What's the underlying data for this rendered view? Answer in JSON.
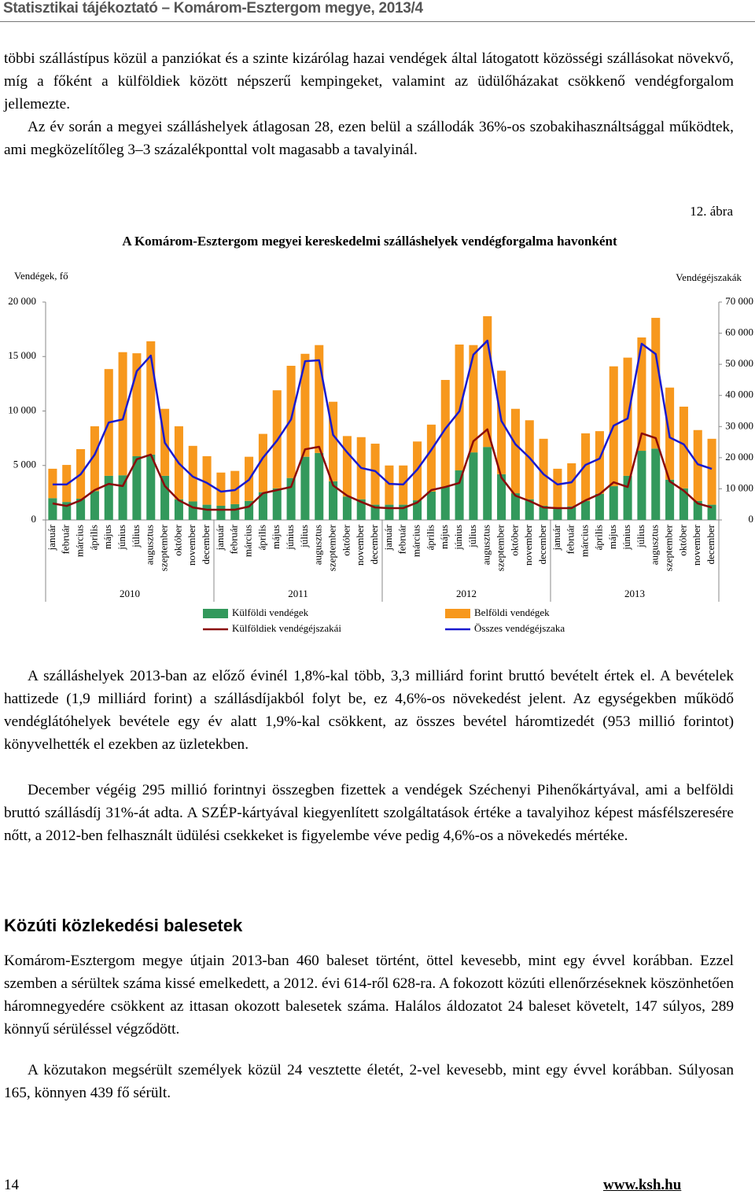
{
  "header": {
    "title": "Statisztikai tájékoztató – Komárom-Esztergom megye, 2013/4"
  },
  "paragraphs_top": [
    "többi szállástípus közül a panziókat és a szinte kizárólag hazai vendégek által látogatott közösségi szállásokat növekvő, míg a főként a külföldiek között népszerű kempingeket, valamint az üdülőházakat csökkenő vendégforgalom jellemezte.",
    "Az év során a megyei szálláshelyek átlagosan 28, ezen belül a szállodák 36%-os szobakihasználtsággal működtek, ami megközelítőleg 3–3 százalékponttal volt magasabb a tavalyinál."
  ],
  "figure_label": "12. ábra",
  "chart_data": {
    "type": "bar",
    "stacked": true,
    "title": "A Komárom-Esztergom megyei kereskedelmi szálláshelyek vendégforgalma havonként",
    "y_label": "Vendégek, fő",
    "y2_label": "Vendégéjszakák",
    "categories": [
      "január",
      "február",
      "március",
      "április",
      "május",
      "június",
      "július",
      "augusztus",
      "szeptember",
      "október",
      "november",
      "december",
      "január",
      "február",
      "március",
      "április",
      "május",
      "június",
      "július",
      "augusztus",
      "szeptember",
      "október",
      "november",
      "december",
      "január",
      "február",
      "március",
      "április",
      "május",
      "június",
      "július",
      "augusztus",
      "szeptember",
      "október",
      "november",
      "december",
      "január",
      "február",
      "március",
      "április",
      "május",
      "június",
      "július",
      "augusztus",
      "szeptember",
      "október",
      "november",
      "december"
    ],
    "years": [
      "2010",
      "2011",
      "2012",
      "2013"
    ],
    "series": [
      {
        "name": "Külföldi vendégek",
        "type": "bar",
        "color": "#33995c",
        "values": [
          2000,
          1650,
          1950,
          2650,
          4050,
          4100,
          5850,
          6000,
          4050,
          1900,
          1700,
          1400,
          1300,
          1450,
          1750,
          2550,
          2900,
          3850,
          5800,
          6150,
          3550,
          2150,
          1900,
          1400,
          1400,
          1400,
          1800,
          2600,
          3050,
          4550,
          6200,
          6700,
          4200,
          2450,
          1900,
          1300,
          1150,
          1250,
          1750,
          2400,
          3100,
          4050,
          6350,
          6550,
          3700,
          2900,
          1750,
          1400
        ]
      },
      {
        "name": "Belföldi vendégek",
        "type": "bar",
        "color": "#f7981d",
        "values": [
          2700,
          3400,
          4550,
          5950,
          9800,
          11300,
          9450,
          10400,
          6150,
          6700,
          5100,
          4450,
          3050,
          3050,
          4050,
          5350,
          9000,
          10300,
          9450,
          9900,
          7300,
          5550,
          5700,
          5600,
          3600,
          3600,
          5400,
          6150,
          9800,
          11550,
          9850,
          12000,
          9500,
          7750,
          7250,
          6150,
          3550,
          3950,
          6200,
          5750,
          11000,
          10850,
          10400,
          12000,
          8450,
          7500,
          6500,
          6050
        ]
      },
      {
        "name": "Külföldiek vendégéjszakái",
        "type": "line",
        "axis": "y2",
        "color": "#8b0a0a",
        "values": [
          5300,
          4500,
          6300,
          9600,
          11600,
          10900,
          19500,
          21000,
          10900,
          6300,
          4000,
          3300,
          3300,
          3300,
          4300,
          8600,
          9600,
          10600,
          22700,
          23500,
          11100,
          7800,
          5800,
          4000,
          3800,
          3800,
          5600,
          9600,
          10600,
          11900,
          25300,
          29100,
          13600,
          7800,
          6100,
          4000,
          3800,
          3800,
          6300,
          8300,
          12100,
          10600,
          27800,
          26300,
          12400,
          9400,
          5300,
          4000
        ]
      },
      {
        "name": "Összes vendégéjszaka",
        "type": "line",
        "axis": "y2",
        "color": "#1a1acf",
        "values": [
          11400,
          11400,
          14650,
          21000,
          31300,
          32300,
          47800,
          52800,
          24800,
          18200,
          13900,
          11900,
          9100,
          9600,
          12900,
          20000,
          25500,
          32300,
          51000,
          51300,
          27300,
          21700,
          16700,
          15700,
          11600,
          11400,
          16200,
          22500,
          29300,
          34900,
          53100,
          57600,
          31800,
          24300,
          20000,
          14700,
          11400,
          12100,
          17700,
          19700,
          30300,
          32600,
          56600,
          53300,
          26500,
          24300,
          17900,
          16400
        ]
      }
    ],
    "ylim": [
      0,
      20000
    ],
    "yticks": [
      0,
      {
        "value": 5000,
        "label": "5 000"
      },
      {
        "value": 10000,
        "label": "10 000"
      },
      {
        "value": 15000,
        "label": "15 000"
      },
      {
        "value": 20000,
        "label": "20 000"
      }
    ],
    "y2lim": [
      0,
      70000
    ],
    "y2ticks": [
      0,
      {
        "value": 10000,
        "label": "10 000"
      },
      {
        "value": 20000,
        "label": "20 000"
      },
      {
        "value": 30000,
        "label": "30 000"
      },
      {
        "value": 40000,
        "label": "40 000"
      },
      {
        "value": 50000,
        "label": "50 000"
      },
      {
        "value": 60000,
        "label": "60 000"
      },
      {
        "value": 70000,
        "label": "70 000"
      }
    ],
    "grid": false
  },
  "paragraphs_bottom": [
    "A szálláshelyek 2013-ban az előző évinél 1,8%-kal több, 3,3 milliárd forint bruttó bevételt értek el. A bevételek hattizede (1,9 milliárd forint) a szállásdíjakból folyt be, ez 4,6%-os növekedést jelent. Az egységekben működő vendéglátóhelyek bevétele egy év alatt 1,9%-kal csökkent, az összes bevétel háromtizedét (953 millió forintot) könyvelhették el ezekben az üzletekben.",
    "December végéig 295 millió forintnyi összegben fizettek a vendégek Széchenyi Pihenőkártyával, ami a belföldi bruttó szállásdíj 31%-át adta. A SZÉP-kártyával kiegyenlített szolgáltatások értéke a tavalyihoz képest másfélszeresére nőtt, a 2012-ben felhasznált üdülési csekkeket is figyelembe véve pedig 4,6%-os a növekedés mértéke."
  ],
  "section": {
    "title": "Közúti közlekedési balesetek",
    "paragraphs": [
      "Komárom-Esztergom megye útjain 2013-ban 460 baleset történt, öttel kevesebb, mint egy évvel korábban. Ezzel szemben a sérültek száma kissé emelkedett, a 2012. évi 614-ről 628-ra. A fokozott közúti ellenőrzéseknek köszönhetően háromnegyedére csökkent az ittasan okozott balesetek száma. Halálos áldozatot 24 baleset követelt, 147 súlyos, 289 könnyű sérüléssel végződött.",
      "A közutakon megsérült személyek közül 24 vesztette életét, 2-vel kevesebb, mint egy évvel korábban. Súlyosan 165, könnyen 439 fő sérült."
    ]
  },
  "footer": {
    "page": "14",
    "url": "www.ksh.hu"
  }
}
